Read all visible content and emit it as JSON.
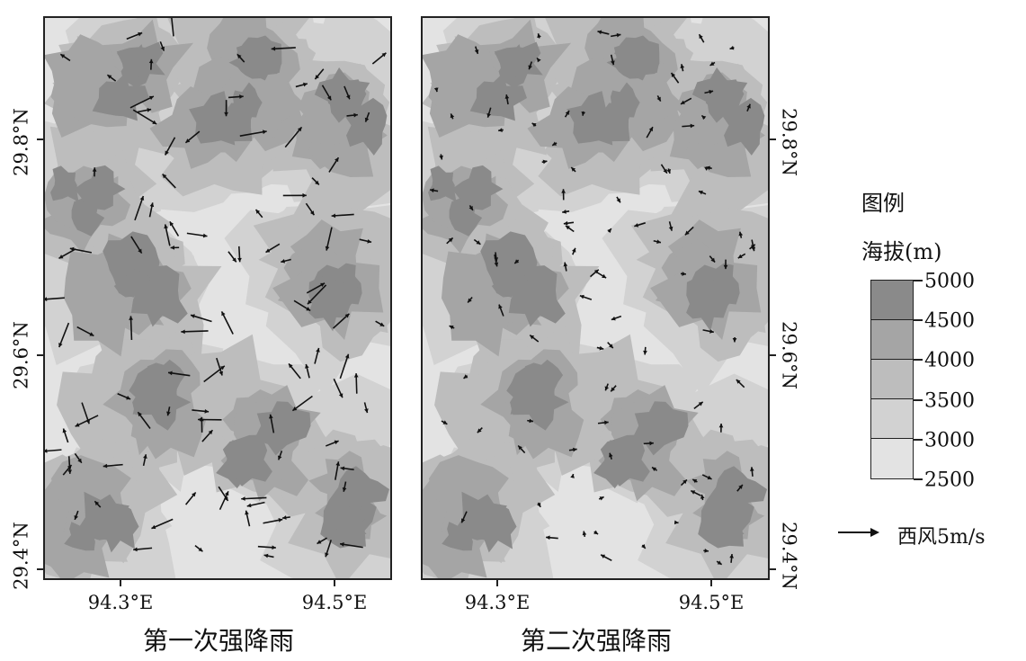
{
  "panels": [
    {
      "id": "left",
      "title": "第一次强降雨"
    },
    {
      "id": "right",
      "title": "第二次强降雨"
    }
  ],
  "lat_labels": [
    "29.8°N",
    "29.6°N",
    "29.4°N"
  ],
  "lon_labels": [
    "94.3°E",
    "94.5°E"
  ],
  "legend": {
    "title": "图例",
    "subtitle": "海拔(m)",
    "values": [
      "5000",
      "4500",
      "4000",
      "3500",
      "3000",
      "2500"
    ],
    "colors": [
      "#8a8a8a",
      "#a5a5a5",
      "#bdbdbd",
      "#d2d2d2",
      "#e3e3e3"
    ]
  },
  "wind_key": {
    "label": "西风5m/s"
  }
}
